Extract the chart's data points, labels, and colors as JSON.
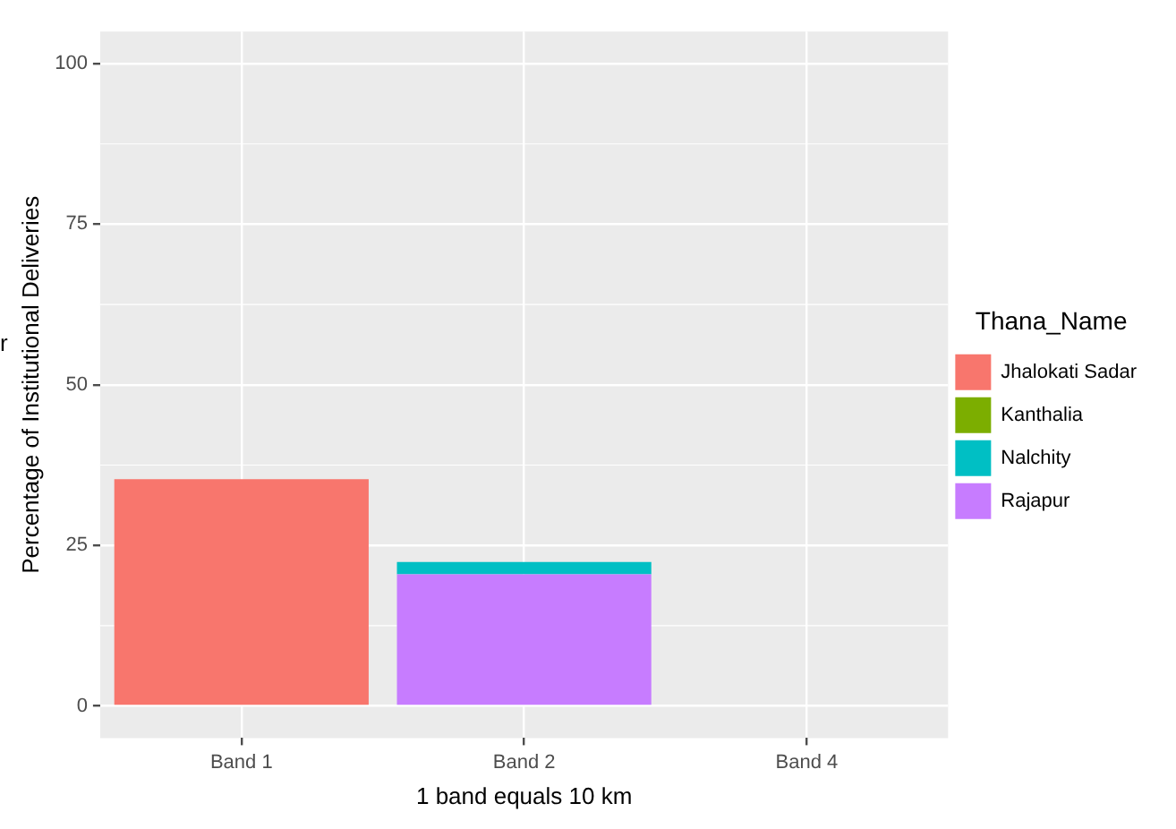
{
  "chart_data": {
    "type": "bar",
    "xlabel": "1 band equals 10 km",
    "ylabel": "Percentage of Institutional Deliveries",
    "legend_title": "Thana_Name",
    "categories": [
      "Band 1",
      "Band 2",
      "Band 4"
    ],
    "stacked": true,
    "series": [
      {
        "name": "Rajapur",
        "color": "#c77cff",
        "values": [
          null,
          20.5,
          null
        ]
      },
      {
        "name": "Nalchity",
        "color": "#00bfc4",
        "values": [
          null,
          1.9,
          null
        ]
      },
      {
        "name": "Kanthalia",
        "color": "#7cae00",
        "values": [
          null,
          null,
          null
        ]
      },
      {
        "name": "Jhalokati Sadar",
        "color": "#f8766d",
        "values": [
          35.3,
          null,
          null
        ]
      }
    ],
    "ylim": [
      -5,
      105
    ],
    "yticks": [
      0,
      25,
      50,
      75,
      100
    ],
    "grid": true,
    "legend": "right",
    "annotations": [
      "r"
    ]
  }
}
